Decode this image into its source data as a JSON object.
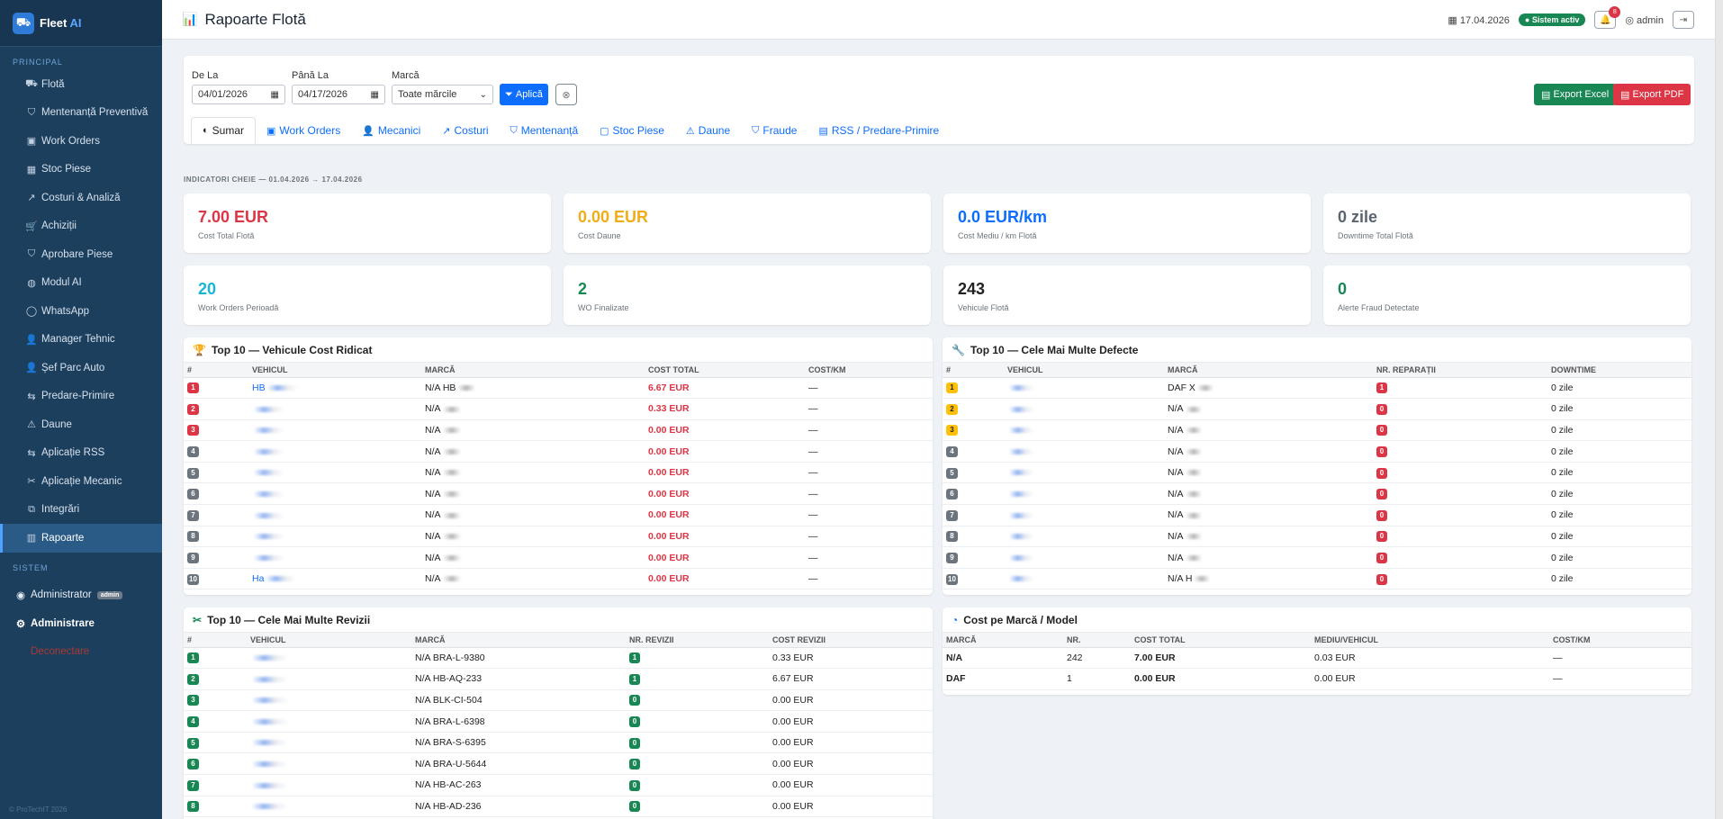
{
  "brand": {
    "name": "Fleet",
    "ai": "AI"
  },
  "sidebar": {
    "section_principal": "PRINCIPAL",
    "items": [
      {
        "label": "Flotă"
      },
      {
        "label": "Mentenanță Preventivă"
      },
      {
        "label": "Work Orders"
      },
      {
        "label": "Stoc Piese"
      },
      {
        "label": "Costuri & Analiză"
      },
      {
        "label": "Achiziții"
      },
      {
        "label": "Aprobare Piese"
      },
      {
        "label": "Modul AI"
      },
      {
        "label": "WhatsApp"
      },
      {
        "label": "Manager Tehnic"
      },
      {
        "label": "Șef Parc Auto"
      },
      {
        "label": "Predare-Primire"
      },
      {
        "label": "Daune"
      },
      {
        "label": "Aplicație RSS"
      },
      {
        "label": "Aplicație Mecanic"
      },
      {
        "label": "Integrări"
      },
      {
        "label": "Rapoarte"
      }
    ],
    "section_sistem": "SISTEM",
    "administrator": "Administrator",
    "admin_badge": "admin",
    "administrare": "Administrare",
    "logout": "Deconectare",
    "copyright": "© ProTechIT 2026"
  },
  "header": {
    "title": "Rapoarte Flotă",
    "date": "17.04.2026",
    "status": "Sistem activ",
    "notifications": "8",
    "user": "admin"
  },
  "filters": {
    "from_label": "De La",
    "from_value": "04/01/2026",
    "to_label": "Până La",
    "to_value": "04/17/2026",
    "brand_label": "Marcă",
    "brand_value": "Toate mărcile",
    "apply": "Aplică",
    "export_excel": "Export Excel",
    "export_pdf": "Export PDF"
  },
  "tabs": [
    {
      "label": "Sumar"
    },
    {
      "label": "Work Orders"
    },
    {
      "label": "Mecanici"
    },
    {
      "label": "Costuri"
    },
    {
      "label": "Mentenanță"
    },
    {
      "label": "Stoc Piese"
    },
    {
      "label": "Daune"
    },
    {
      "label": "Fraude"
    },
    {
      "label": "RSS / Predare-Primire"
    }
  ],
  "kpi_heading": "INDICATORI CHEIE — 01.04.2026 → 17.04.2026",
  "kpis": [
    {
      "value": "7.00 EUR",
      "label": "Cost Total Flotă",
      "color": "#dc3545"
    },
    {
      "value": "0.00 EUR",
      "label": "Cost Daune",
      "color": "#f0ad18"
    },
    {
      "value": "0.0 EUR/km",
      "label": "Cost Mediu / km Flotă",
      "color": "#0d6efd"
    },
    {
      "value": "0 zile",
      "label": "Downtime Total Flotă",
      "color": "#5a6470"
    },
    {
      "value": "20",
      "label": "Work Orders Perioadă",
      "color": "#17b6d6"
    },
    {
      "value": "2",
      "label": "WO Finalizate",
      "color": "#198754"
    },
    {
      "value": "243",
      "label": "Vehicule Flotă",
      "color": "#222222"
    },
    {
      "value": "0",
      "label": "Alerte Fraud Detectate",
      "color": "#198754"
    }
  ],
  "top_cost": {
    "title": "Top 10 — Vehicule Cost Ridicat",
    "headers": [
      "#",
      "VEHICUL",
      "MARCĂ",
      "COST TOTAL",
      "COST/KM"
    ],
    "rows": [
      {
        "rank": "1",
        "vehicle": "HB",
        "brand": "N/A HB",
        "cost": "6.67 EUR",
        "costkm": "—"
      },
      {
        "rank": "2",
        "vehicle": "",
        "brand": "N/A",
        "cost": "0.33 EUR",
        "costkm": "—"
      },
      {
        "rank": "3",
        "vehicle": "",
        "brand": "N/A",
        "cost": "0.00 EUR",
        "costkm": "—"
      },
      {
        "rank": "4",
        "vehicle": "",
        "brand": "N/A",
        "cost": "0.00 EUR",
        "costkm": "—"
      },
      {
        "rank": "5",
        "vehicle": "",
        "brand": "N/A",
        "cost": "0.00 EUR",
        "costkm": "—"
      },
      {
        "rank": "6",
        "vehicle": "",
        "brand": "N/A",
        "cost": "0.00 EUR",
        "costkm": "—"
      },
      {
        "rank": "7",
        "vehicle": "",
        "brand": "N/A",
        "cost": "0.00 EUR",
        "costkm": "—"
      },
      {
        "rank": "8",
        "vehicle": "",
        "brand": "N/A",
        "cost": "0.00 EUR",
        "costkm": "—"
      },
      {
        "rank": "9",
        "vehicle": "",
        "brand": "N/A",
        "cost": "0.00 EUR",
        "costkm": "—"
      },
      {
        "rank": "10",
        "vehicle": "Ha",
        "brand": "N/A",
        "cost": "0.00 EUR",
        "costkm": "—"
      }
    ]
  },
  "top_defects": {
    "title": "Top 10 — Cele Mai Multe Defecte",
    "headers": [
      "#",
      "VEHICUL",
      "MARCĂ",
      "NR. REPARAȚII",
      "DOWNTIME"
    ],
    "rows": [
      {
        "rank": "1",
        "vehicle": "",
        "brand": "DAF X",
        "repairs": "1",
        "downtime": "0 zile"
      },
      {
        "rank": "2",
        "vehicle": "",
        "brand": "N/A",
        "repairs": "0",
        "downtime": "0 zile"
      },
      {
        "rank": "3",
        "vehicle": "",
        "brand": "N/A",
        "repairs": "0",
        "downtime": "0 zile"
      },
      {
        "rank": "4",
        "vehicle": "",
        "brand": "N/A",
        "repairs": "0",
        "downtime": "0 zile"
      },
      {
        "rank": "5",
        "vehicle": "",
        "brand": "N/A",
        "repairs": "0",
        "downtime": "0 zile"
      },
      {
        "rank": "6",
        "vehicle": "",
        "brand": "N/A",
        "repairs": "0",
        "downtime": "0 zile"
      },
      {
        "rank": "7",
        "vehicle": "",
        "brand": "N/A",
        "repairs": "0",
        "downtime": "0 zile"
      },
      {
        "rank": "8",
        "vehicle": "",
        "brand": "N/A",
        "repairs": "0",
        "downtime": "0 zile"
      },
      {
        "rank": "9",
        "vehicle": "",
        "brand": "N/A",
        "repairs": "0",
        "downtime": "0 zile"
      },
      {
        "rank": "10",
        "vehicle": "",
        "brand": "N/A H",
        "repairs": "0",
        "downtime": "0 zile"
      }
    ]
  },
  "top_revisions": {
    "title": "Top 10 — Cele Mai Multe Revizii",
    "headers": [
      "#",
      "VEHICUL",
      "MARCĂ",
      "NR. REVIZII",
      "COST REVIZII"
    ],
    "rows": [
      {
        "rank": "1",
        "vehicle": "",
        "brand": "N/A BRA-L-9380",
        "count": "1",
        "cost": "0.33 EUR"
      },
      {
        "rank": "2",
        "vehicle": "",
        "brand": "N/A HB-AQ-233",
        "count": "1",
        "cost": "6.67 EUR"
      },
      {
        "rank": "3",
        "vehicle": "",
        "brand": "N/A BLK-CI-504",
        "count": "0",
        "cost": "0.00 EUR"
      },
      {
        "rank": "4",
        "vehicle": "",
        "brand": "N/A BRA-L-6398",
        "count": "0",
        "cost": "0.00 EUR"
      },
      {
        "rank": "5",
        "vehicle": "",
        "brand": "N/A BRA-S-6395",
        "count": "0",
        "cost": "0.00 EUR"
      },
      {
        "rank": "6",
        "vehicle": "",
        "brand": "N/A BRA-U-5644",
        "count": "0",
        "cost": "0.00 EUR"
      },
      {
        "rank": "7",
        "vehicle": "",
        "brand": "N/A HB-AC-263",
        "count": "0",
        "cost": "0.00 EUR"
      },
      {
        "rank": "8",
        "vehicle": "",
        "brand": "N/A HB-AD-236",
        "count": "0",
        "cost": "0.00 EUR"
      }
    ]
  },
  "cost_brand": {
    "title": "Cost pe Marcă / Model",
    "headers": [
      "MARCĂ",
      "NR.",
      "COST TOTAL",
      "MEDIU/VEHICUL",
      "COST/KM"
    ],
    "rows": [
      {
        "brand": "N/A",
        "count": "242",
        "total": "7.00 EUR",
        "avg": "0.03 EUR",
        "km": "—"
      },
      {
        "brand": "DAF",
        "count": "1",
        "total": "0.00 EUR",
        "avg": "0.00 EUR",
        "km": "—"
      }
    ]
  }
}
